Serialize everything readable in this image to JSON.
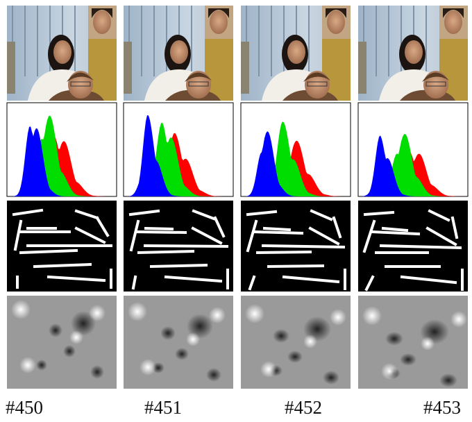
{
  "figure": {
    "panels": [
      {
        "label": "#450"
      },
      {
        "label": "#451"
      },
      {
        "label": "#452"
      },
      {
        "label": "#453"
      }
    ]
  }
}
